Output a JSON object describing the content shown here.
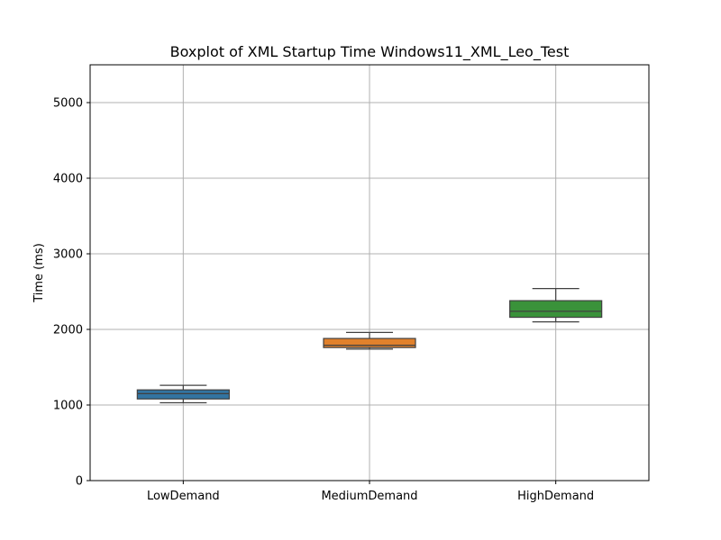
{
  "chart_data": {
    "type": "boxplot",
    "title": "Boxplot of XML Startup Time Windows11_XML_Leo_Test",
    "xlabel": "",
    "ylabel": "Time (ms)",
    "ylim": [
      0,
      5500
    ],
    "yticks": [
      0,
      1000,
      2000,
      3000,
      4000,
      5000
    ],
    "grid": true,
    "categories": [
      "LowDemand",
      "MediumDemand",
      "HighDemand"
    ],
    "boxes": [
      {
        "category": "LowDemand",
        "whisker_low": 1030,
        "q1": 1080,
        "median": 1150,
        "q3": 1200,
        "whisker_high": 1260,
        "color": "#3274a1"
      },
      {
        "category": "MediumDemand",
        "whisker_low": 1740,
        "q1": 1760,
        "median": 1790,
        "q3": 1880,
        "whisker_high": 1960,
        "color": "#e1812c"
      },
      {
        "category": "HighDemand",
        "whisker_low": 2100,
        "q1": 2160,
        "median": 2240,
        "q3": 2380,
        "whisker_high": 2540,
        "color": "#3a923a"
      }
    ]
  }
}
